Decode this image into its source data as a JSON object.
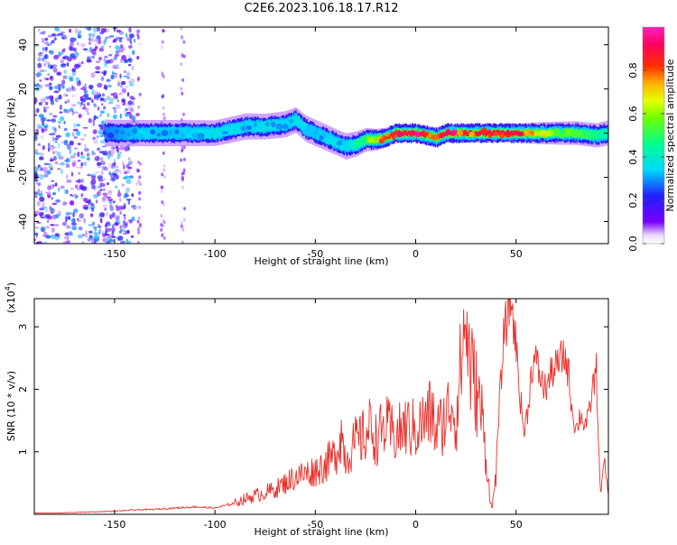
{
  "title": "C2E6.2023.106.18.17.R12",
  "colors": {
    "line": "#e8322d",
    "axis": "#000000",
    "spectrum_low": "#7a00ff",
    "spectrum_mid": "#00ff7a",
    "spectrum_high": "#ff0040"
  },
  "chart_data": [
    {
      "type": "heatmap",
      "xlabel": "Height of straight line (km)",
      "ylabel": "Frequency (Hz)",
      "xlim": [
        -190,
        96
      ],
      "ylim": [
        -50,
        48
      ],
      "xticks": [
        -150,
        -100,
        -50,
        0,
        50
      ],
      "yticks": [
        -40,
        -20,
        0,
        20,
        40
      ],
      "colorbar": {
        "label": "Normalized spectral amplitude",
        "range": [
          0.0,
          1.0
        ],
        "ticks": [
          "0.0",
          "0.2",
          "0.4",
          "0.6",
          "0.8"
        ],
        "colormap": "rainbow (purple→blue→cyan→green→yellow→red→magenta)"
      },
      "ridge": {
        "x": [
          -155,
          -140,
          -120,
          -100,
          -85,
          -75,
          -65,
          -60,
          -55,
          -50,
          -45,
          -40,
          -35,
          -30,
          -25,
          -20,
          -15,
          -10,
          -5,
          0,
          5,
          10,
          15,
          20,
          30,
          40,
          50,
          60,
          70,
          80,
          90,
          95
        ],
        "frequency_hz": [
          0,
          0,
          0,
          0,
          3,
          3,
          4,
          6,
          2,
          0,
          -2,
          -4,
          -6,
          -5,
          -3,
          -3,
          -2,
          0,
          0,
          0,
          -1,
          -2,
          0,
          0,
          0,
          0,
          0,
          0,
          0,
          0,
          -1,
          0
        ],
        "amplitude": [
          0.3,
          0.35,
          0.35,
          0.4,
          0.35,
          0.4,
          0.35,
          0.4,
          0.35,
          0.35,
          0.35,
          0.4,
          0.35,
          0.45,
          0.55,
          0.7,
          0.85,
          0.9,
          0.95,
          0.95,
          0.85,
          0.8,
          0.9,
          0.9,
          0.9,
          0.92,
          0.9,
          0.7,
          0.6,
          0.55,
          0.5,
          0.45
        ]
      },
      "noise_region": {
        "x_range": [
          -190,
          -140
        ],
        "description_amplitude": 0.3
      }
    },
    {
      "type": "line",
      "xlabel": "Height of straight line (km)",
      "ylabel": "SNR (10 * v/v)",
      "ylabel_multiplier": "(x10",
      "ylabel_multiplier_exp": "4",
      "ylabel_multiplier_close": ")",
      "xlim": [
        -190,
        96
      ],
      "ylim": [
        0,
        3.45
      ],
      "xticks": [
        -150,
        -100,
        -50,
        0,
        50
      ],
      "yticks": [
        1,
        2,
        3
      ],
      "series": [
        {
          "x": [
            -190,
            -180,
            -170,
            -160,
            -150,
            -140,
            -130,
            -120,
            -110,
            -100,
            -90,
            -85,
            -80,
            -75,
            -70,
            -65,
            -60,
            -55,
            -50,
            -45,
            -40,
            -37,
            -35,
            -30,
            -25,
            -22,
            -20,
            -15,
            -10,
            -5,
            0,
            5,
            8,
            10,
            15,
            18,
            20,
            23,
            25,
            27,
            30,
            33,
            35,
            37,
            38,
            40,
            42,
            44,
            46,
            47,
            48,
            50,
            52,
            54,
            56,
            58,
            60,
            62,
            64,
            66,
            68,
            70,
            72,
            74,
            76,
            78,
            80,
            82,
            84,
            86,
            88,
            90,
            92,
            94,
            96
          ],
          "y": [
            0.02,
            0.02,
            0.03,
            0.04,
            0.05,
            0.07,
            0.08,
            0.1,
            0.12,
            0.1,
            0.18,
            0.25,
            0.3,
            0.35,
            0.4,
            0.5,
            0.6,
            0.65,
            0.7,
            0.8,
            0.95,
            1.3,
            0.9,
            1.15,
            1.25,
            1.45,
            1.2,
            1.4,
            1.25,
            1.4,
            1.35,
            1.5,
            1.65,
            1.3,
            1.55,
            1.85,
            1.45,
            2.6,
            3.1,
            2.4,
            2.0,
            1.6,
            0.9,
            0.3,
            0.05,
            0.7,
            1.9,
            2.9,
            3.2,
            3.45,
            3.3,
            2.7,
            1.9,
            1.3,
            1.7,
            2.4,
            2.45,
            2.2,
            2.0,
            2.1,
            2.3,
            2.35,
            2.45,
            2.55,
            2.3,
            1.65,
            1.35,
            1.6,
            1.45,
            1.5,
            2.0,
            2.3,
            0.3,
            0.85,
            0.3
          ]
        }
      ]
    }
  ]
}
